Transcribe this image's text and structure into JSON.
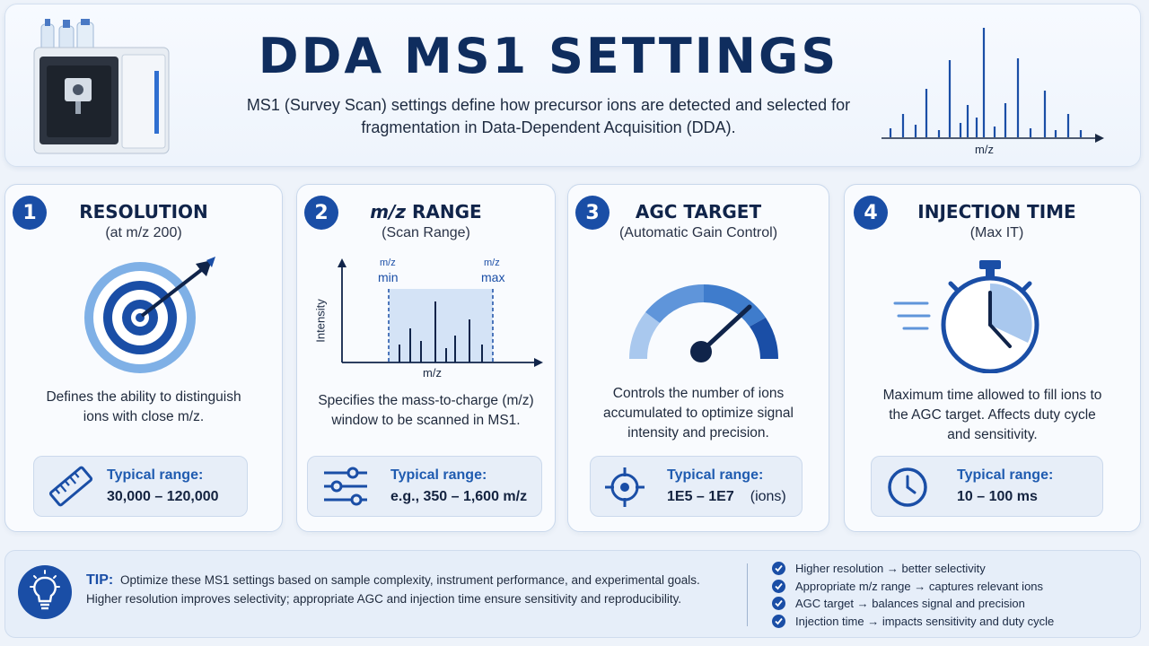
{
  "header": {
    "title": "DDA MS1 SETTINGS",
    "subtitle": "MS1 (Survey Scan) settings define how precursor ions are detected and selected for fragmentation in Data-Dependent Acquisition (DDA).",
    "spectrum_axis_label": "m/z"
  },
  "cards": [
    {
      "number": "1",
      "title": "RESOLUTION",
      "subtitle": "(at m/z 200)",
      "icon": "target-arrow-icon",
      "description": "Defines the ability to distinguish ions with close m/z.",
      "range_label": "Typical range:",
      "range_value": "30,000 – 120,000",
      "range_icon": "ruler-icon"
    },
    {
      "number": "2",
      "title_italic": "m/z",
      "title_rest": " RANGE",
      "subtitle": "(Scan Range)",
      "graph": {
        "min_top": "m/z",
        "min_label": "min",
        "max_top": "m/z",
        "max_label": "max",
        "y_label": "Intensity",
        "x_label": "m/z"
      },
      "description": "Specifies the mass-to-charge (m/z) window to be scanned in MS1.",
      "range_label": "Typical range:",
      "range_value": "e.g., 350 – 1,600 m/z",
      "range_icon": "sliders-icon"
    },
    {
      "number": "3",
      "title": "AGC TARGET",
      "subtitle": "(Automatic Gain Control)",
      "icon": "gauge-icon",
      "description": "Controls the number of ions accumulated to optimize signal intensity and precision.",
      "range_label": "Typical range:",
      "range_value": "1E5 – 1E7",
      "range_unit": "(ions)",
      "range_icon": "crosshair-icon"
    },
    {
      "number": "4",
      "title": "INJECTION TIME",
      "subtitle": "(Max IT)",
      "icon": "stopwatch-icon",
      "description": "Maximum time allowed to fill ions to the AGC target. Affects duty cycle and sensitivity.",
      "range_label": "Typical range:",
      "range_value": "10 – 100 ms",
      "range_icon": "clock-icon"
    }
  ],
  "tip": {
    "label": "TIP:",
    "text": "Optimize these MS1 settings based on sample complexity, instrument performance, and experimental goals. Higher resolution improves selectivity; appropriate AGC and injection time ensure sensitivity and reproducibility.",
    "icon": "lightbulb-icon",
    "checklist": [
      "Higher resolution → better selectivity",
      "Appropriate m/z range → captures relevant ions",
      "AGC target → balances signal and precision",
      "Injection time → impacts sensitivity and duty cycle"
    ]
  },
  "colors": {
    "primary": "#1a4ea6",
    "title": "#0f2d5e",
    "light_blue": "#7fb0e6",
    "background": "#eef3fa"
  }
}
